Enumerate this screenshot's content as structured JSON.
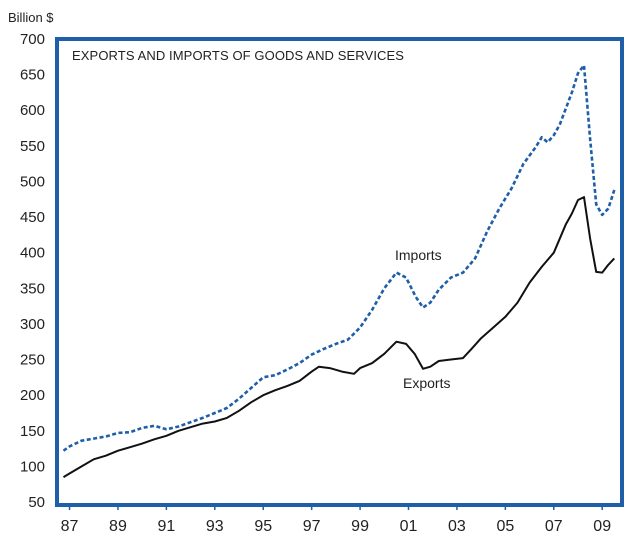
{
  "chart_data": {
    "type": "line",
    "title": "EXPORTS AND IMPORTS OF GOODS AND SERVICES",
    "ylabel": "Billion $",
    "ylim": [
      50,
      700
    ],
    "yticks": [
      50,
      100,
      150,
      200,
      250,
      300,
      350,
      400,
      450,
      500,
      550,
      600,
      650,
      700
    ],
    "xlim": [
      1986.4,
      2009.9
    ],
    "xticks": [
      {
        "value": 1987,
        "label": "87"
      },
      {
        "value": 1989,
        "label": "89"
      },
      {
        "value": 1991,
        "label": "91"
      },
      {
        "value": 1993,
        "label": "93"
      },
      {
        "value": 1995,
        "label": "95"
      },
      {
        "value": 1997,
        "label": "97"
      },
      {
        "value": 1999,
        "label": "99"
      },
      {
        "value": 2001,
        "label": "01"
      },
      {
        "value": 2003,
        "label": "03"
      },
      {
        "value": 2005,
        "label": "05"
      },
      {
        "value": 2007,
        "label": "07"
      },
      {
        "value": 2009,
        "label": "09"
      }
    ],
    "grid": false,
    "colors": {
      "frame": "#1f5fa8",
      "imports": "#1f5fa8",
      "exports": "#111111"
    },
    "series": [
      {
        "name": "Imports",
        "style": "dashed",
        "points": [
          [
            1986.75,
            122
          ],
          [
            1987.0,
            128
          ],
          [
            1987.5,
            136
          ],
          [
            1988.0,
            139
          ],
          [
            1988.5,
            142
          ],
          [
            1989.0,
            147
          ],
          [
            1989.5,
            148
          ],
          [
            1990.0,
            154
          ],
          [
            1990.5,
            157
          ],
          [
            1991.0,
            152
          ],
          [
            1991.5,
            156
          ],
          [
            1992.0,
            162
          ],
          [
            1992.5,
            168
          ],
          [
            1993.0,
            175
          ],
          [
            1993.5,
            182
          ],
          [
            1994.0,
            195
          ],
          [
            1994.5,
            210
          ],
          [
            1995.0,
            225
          ],
          [
            1995.5,
            228
          ],
          [
            1996.0,
            236
          ],
          [
            1996.5,
            245
          ],
          [
            1997.0,
            257
          ],
          [
            1997.5,
            265
          ],
          [
            1998.0,
            272
          ],
          [
            1998.5,
            278
          ],
          [
            1999.0,
            295
          ],
          [
            1999.5,
            320
          ],
          [
            2000.0,
            350
          ],
          [
            2000.5,
            372
          ],
          [
            2000.9,
            365
          ],
          [
            2001.3,
            338
          ],
          [
            2001.6,
            323
          ],
          [
            2001.9,
            330
          ],
          [
            2002.25,
            348
          ],
          [
            2002.75,
            365
          ],
          [
            2003.25,
            372
          ],
          [
            2003.75,
            392
          ],
          [
            2004.25,
            430
          ],
          [
            2004.75,
            462
          ],
          [
            2005.25,
            490
          ],
          [
            2005.75,
            525
          ],
          [
            2006.25,
            548
          ],
          [
            2006.5,
            562
          ],
          [
            2006.75,
            555
          ],
          [
            2007.0,
            565
          ],
          [
            2007.25,
            580
          ],
          [
            2007.75,
            625
          ],
          [
            2008.0,
            652
          ],
          [
            2008.25,
            663
          ],
          [
            2008.5,
            560
          ],
          [
            2008.75,
            468
          ],
          [
            2009.0,
            453
          ],
          [
            2009.25,
            462
          ],
          [
            2009.5,
            488
          ]
        ]
      },
      {
        "name": "Exports",
        "style": "solid",
        "points": [
          [
            1986.75,
            85
          ],
          [
            1987.0,
            90
          ],
          [
            1987.5,
            100
          ],
          [
            1988.0,
            110
          ],
          [
            1988.5,
            115
          ],
          [
            1989.0,
            122
          ],
          [
            1989.5,
            127
          ],
          [
            1990.0,
            132
          ],
          [
            1990.5,
            138
          ],
          [
            1991.0,
            143
          ],
          [
            1991.5,
            150
          ],
          [
            1992.0,
            155
          ],
          [
            1992.5,
            160
          ],
          [
            1993.0,
            163
          ],
          [
            1993.5,
            168
          ],
          [
            1994.0,
            178
          ],
          [
            1994.5,
            190
          ],
          [
            1995.0,
            200
          ],
          [
            1995.5,
            207
          ],
          [
            1996.0,
            213
          ],
          [
            1996.5,
            220
          ],
          [
            1997.0,
            233
          ],
          [
            1997.3,
            240
          ],
          [
            1997.75,
            238
          ],
          [
            1998.25,
            233
          ],
          [
            1998.75,
            230
          ],
          [
            1999.0,
            238
          ],
          [
            1999.5,
            245
          ],
          [
            2000.0,
            258
          ],
          [
            2000.5,
            275
          ],
          [
            2000.9,
            272
          ],
          [
            2001.25,
            258
          ],
          [
            2001.6,
            237
          ],
          [
            2001.9,
            240
          ],
          [
            2002.25,
            248
          ],
          [
            2002.75,
            250
          ],
          [
            2003.25,
            252
          ],
          [
            2003.6,
            265
          ],
          [
            2004.0,
            280
          ],
          [
            2004.5,
            295
          ],
          [
            2005.0,
            310
          ],
          [
            2005.5,
            330
          ],
          [
            2006.0,
            358
          ],
          [
            2006.5,
            380
          ],
          [
            2007.0,
            400
          ],
          [
            2007.5,
            440
          ],
          [
            2007.75,
            455
          ],
          [
            2008.0,
            474
          ],
          [
            2008.25,
            478
          ],
          [
            2008.5,
            420
          ],
          [
            2008.75,
            373
          ],
          [
            2009.0,
            372
          ],
          [
            2009.25,
            383
          ],
          [
            2009.5,
            392
          ]
        ]
      }
    ],
    "annotations": [
      {
        "text": "Imports",
        "series": "Imports"
      },
      {
        "text": "Exports",
        "series": "Exports"
      }
    ]
  }
}
